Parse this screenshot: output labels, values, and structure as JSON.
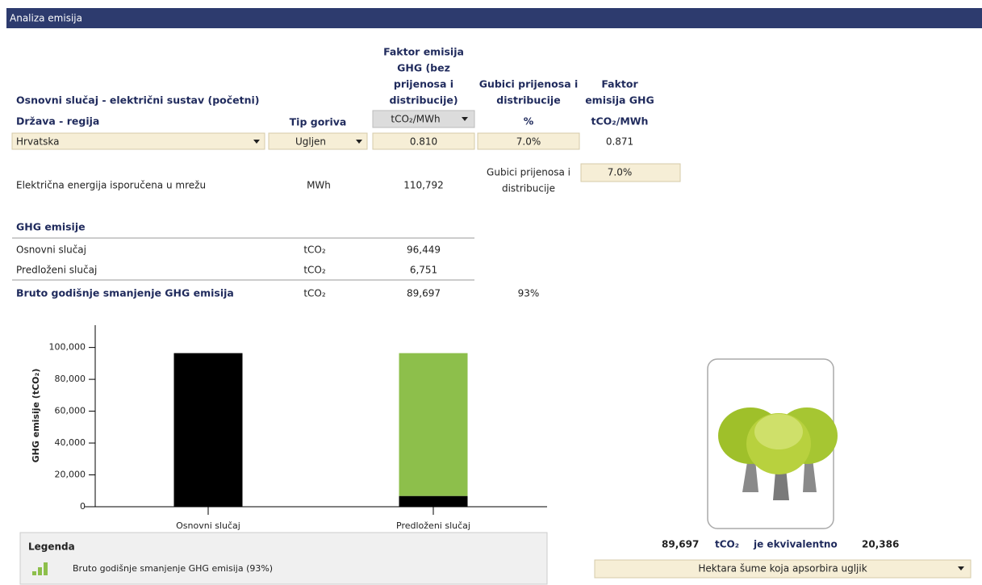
{
  "header": {
    "title": "Analiza emisija"
  },
  "base_case": {
    "title": "Osnovni slučaj - električni sustav (početni)",
    "columns": {
      "region": "Država - regija",
      "fuel": "Tip goriva",
      "factor": [
        "Faktor emisija",
        "GHG (bez",
        "prijenosa i",
        "distribucije)"
      ],
      "factor_unit": "tCO₂/MWh",
      "losses": [
        "Gubici prijenosa i",
        "distribucije"
      ],
      "losses_unit": "%",
      "total_factor": [
        "Faktor",
        "emisija GHG"
      ],
      "total_factor_unit": "tCO₂/MWh"
    },
    "row": {
      "region": "Hrvatska",
      "fuel": "Ugljen",
      "factor": "0.810",
      "losses": "7.0%",
      "total_factor": "0.871"
    }
  },
  "delivery": {
    "label": "Električna energija isporučena u mrežu",
    "unit": "MWh",
    "value": "110,792",
    "losses_label": [
      "Gubici prijenosa i",
      "distribucije"
    ],
    "losses": "7.0%"
  },
  "emissions": {
    "title": "GHG emisije",
    "rows": [
      [
        "Osnovni slučaj",
        "tCO₂",
        "96,449"
      ],
      [
        "Predloženi slučaj",
        "tCO₂",
        "6,751"
      ],
      [
        "Bruto godišnje smanjenje GHG emisija",
        "tCO₂",
        "89,697",
        "93%"
      ]
    ]
  },
  "chart_data": {
    "type": "bar",
    "stacked": true,
    "y_label": "GHG emisije (tCO₂)",
    "categories": [
      "Osnovni slučaj",
      "Predloženi slučaj"
    ],
    "series": [
      {
        "color": "#000000",
        "values": [
          96449,
          6751
        ]
      },
      {
        "name": "Bruto godišnje smanjenje GHG emisija (93%)",
        "color": "#8dbf4b",
        "values": [
          null,
          89697
        ]
      }
    ],
    "ylim": [
      0,
      114000
    ],
    "yticks": [
      0,
      {
        "value": 20000,
        "label": "20,000"
      },
      {
        "value": 40000,
        "label": "40,000"
      },
      {
        "value": 60000,
        "label": "60,000"
      },
      {
        "value": 80000,
        "label": "80,000"
      },
      {
        "value": 100000,
        "label": "100,000"
      }
    ],
    "legend_title": "Legenda"
  },
  "equivalence": {
    "value": "89,697",
    "unit": "tCO₂",
    "text": "je ekvivalentno",
    "result": "20,386",
    "selector": "Hektara šume koja apsorbira ugljik"
  }
}
